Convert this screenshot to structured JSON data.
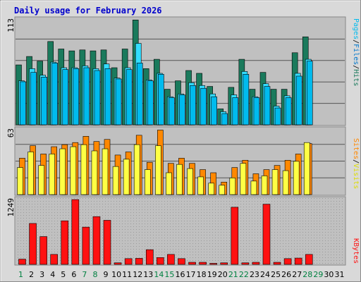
{
  "chart_data": {
    "type": "bar",
    "title": "Daily usage for February 2026",
    "colors": {
      "hits": "#1a7a5c",
      "files": "#33ddff",
      "pages": "#00bbee",
      "visits": "#ff8800",
      "sites": "#ffff44",
      "kbytes": "#ff1111",
      "weekend": "#008040",
      "plot_bg": "#c0c0c0",
      "frame_bg": "#d9d9d9",
      "title": "#0000cc",
      "slash": "#000000"
    },
    "categories": [
      "1",
      "2",
      "3",
      "4",
      "5",
      "6",
      "7",
      "8",
      "9",
      "10",
      "11",
      "12",
      "13",
      "14",
      "15",
      "16",
      "17",
      "18",
      "19",
      "20",
      "21",
      "22",
      "23",
      "24",
      "25",
      "26",
      "27",
      "28",
      "29",
      "30",
      "31"
    ],
    "weekend_days": [
      "1",
      "7",
      "8",
      "14",
      "15",
      "21",
      "22",
      "28",
      "29"
    ],
    "panels": {
      "usage": {
        "max_label": "113",
        "ymax": 113,
        "series": [
          {
            "name": "Hits",
            "values": [
              64,
              73,
              68,
              89,
              81,
              79,
              80,
              79,
              80,
              61,
              81,
              112,
              60,
              70,
              38,
              47,
              58,
              55,
              41,
              17,
              40,
              70,
              38,
              56,
              38,
              38,
              77,
              94,
              0,
              0,
              0
            ]
          },
          {
            "name": "Files",
            "values": [
              47,
              60,
              53,
              67,
              61,
              61,
              63,
              60,
              65,
              50,
              61,
              87,
              48,
              55,
              30,
              33,
              45,
              42,
              33,
              14,
              32,
              57,
              30,
              44,
              20,
              31,
              55,
              70,
              0,
              0,
              0
            ]
          },
          {
            "name": "Pages",
            "values": [
              46,
              56,
              51,
              66,
              59,
              60,
              61,
              58,
              60,
              49,
              59,
              66,
              47,
              54,
              29,
              32,
              42,
              39,
              30,
              12,
              29,
              54,
              29,
              41,
              18,
              29,
              52,
              68,
              0,
              0,
              0
            ]
          }
        ]
      },
      "visitors": {
        "max_label": "63",
        "ymax": 63,
        "series": [
          {
            "name": "Visits",
            "values": [
              35,
              47,
              39,
              46,
              48,
              50,
              56,
              51,
              53,
              38,
              41,
              57,
              31,
              62,
              30,
              35,
              30,
              24,
              21,
              12,
              26,
              33,
              20,
              24,
              28,
              33,
              39,
              49,
              0,
              0,
              0
            ]
          },
          {
            "name": "Sites",
            "values": [
              26,
              41,
              28,
              39,
              44,
              46,
              48,
              42,
              44,
              27,
              34,
              48,
              24,
              47,
              21,
              29,
              25,
              17,
              11,
              9,
              16,
              30,
              13,
              18,
              24,
              23,
              32,
              50,
              0,
              0,
              0
            ]
          }
        ]
      },
      "kbytes": {
        "max_label": "1249",
        "ymax": 1249,
        "series": [
          {
            "name": "KBytes",
            "values": [
              100,
              780,
              530,
              190,
              830,
              1235,
              710,
              910,
              840,
              30,
              110,
              115,
              280,
              130,
              190,
              110,
              40,
              40,
              20,
              30,
              1089,
              30,
              40,
              1147,
              40,
              110,
              120,
              190,
              0,
              0,
              0
            ]
          }
        ]
      }
    },
    "side_labels": {
      "usage": [
        "Pages",
        "Files",
        "Hits"
      ],
      "visitors": [
        "Sites",
        "Visits"
      ],
      "kbytes": [
        "KBytes"
      ]
    }
  }
}
